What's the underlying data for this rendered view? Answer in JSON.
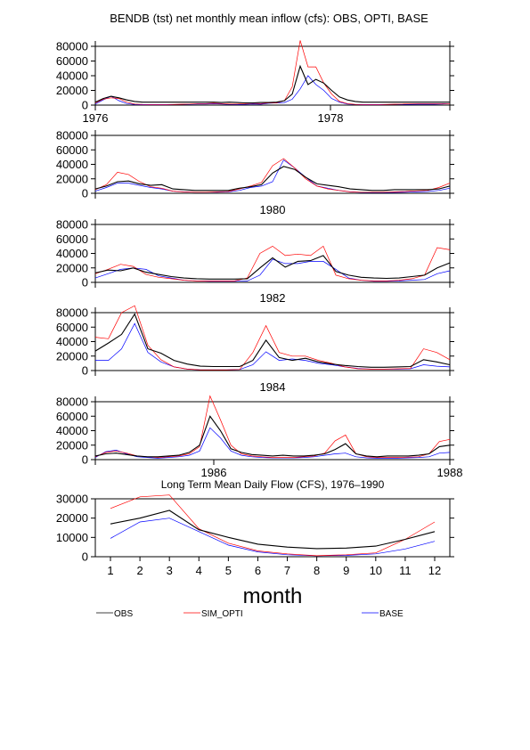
{
  "title": "BENDB (tst) net monthly mean inflow (cfs): OBS, OPTI, BASE",
  "colors": {
    "obs": "#000000",
    "opti": "#ff0000",
    "base": "#0000ff"
  },
  "legend": {
    "obs": "OBS",
    "opti": "SIM_OPTI",
    "base": "BASE"
  },
  "chart_data": [
    {
      "type": "line",
      "panel": 1,
      "x_start": "1976-01",
      "x_end": "1978-01",
      "ylim": [
        0,
        80000
      ],
      "yticks": [
        0,
        20000,
        40000,
        60000,
        80000
      ],
      "top_ticks": [],
      "bottom_ticks": [
        "1976",
        "1978"
      ],
      "series": [
        {
          "name": "OBS",
          "values": [
            4000,
            9000,
            12000,
            10000,
            7000,
            5000,
            4000,
            4000,
            4000,
            4000,
            4000,
            4000,
            4000,
            4000,
            4000,
            4000,
            3500,
            4000,
            3500,
            3000,
            3000,
            3500,
            3500,
            4000,
            6000,
            15000,
            53000,
            28000,
            35000,
            30000,
            20000,
            11000,
            7000,
            5000,
            4000,
            4000,
            4000,
            4000,
            4000,
            4000,
            4000,
            4000,
            4000,
            4000,
            4000,
            4000
          ]
        },
        {
          "name": "SIM_OPTI",
          "values": [
            3000,
            8000,
            10000,
            9000,
            4000,
            1500,
            1000,
            800,
            800,
            900,
            1000,
            1200,
            1500,
            2000,
            2000,
            2500,
            2000,
            1500,
            1500,
            2000,
            2500,
            2000,
            3000,
            3000,
            6000,
            25000,
            88000,
            52000,
            52000,
            30000,
            15000,
            5000,
            2000,
            1000,
            800,
            800,
            800,
            1000,
            1200,
            1500,
            2000,
            2000,
            2000,
            2000,
            2000,
            2000
          ]
        },
        {
          "name": "BASE",
          "values": [
            1500,
            7000,
            12000,
            6000,
            2000,
            800,
            500,
            400,
            400,
            500,
            800,
            1000,
            1200,
            1500,
            1500,
            1800,
            1500,
            1000,
            800,
            1000,
            1500,
            1200,
            2500,
            3000,
            3500,
            8000,
            22000,
            40000,
            28000,
            20000,
            9000,
            4000,
            1500,
            800,
            500,
            500,
            500,
            800,
            1000,
            1000,
            1000,
            1200,
            1200,
            1200,
            1500,
            2000
          ]
        }
      ]
    },
    {
      "type": "line",
      "panel": 2,
      "x_start": "1978-01",
      "x_end": "1980-01",
      "ylim": [
        0,
        80000
      ],
      "yticks": [
        0,
        20000,
        40000,
        60000,
        80000
      ],
      "top_ticks": [],
      "bottom_ticks": [],
      "series": [
        {
          "name": "OBS",
          "values": [
            6000,
            10000,
            16000,
            17000,
            13000,
            11000,
            12000,
            6000,
            5000,
            4000,
            4000,
            4000,
            4000,
            7000,
            9000,
            12000,
            28000,
            37000,
            33000,
            22000,
            13000,
            11000,
            9000,
            6000,
            5000,
            4000,
            4000,
            5000,
            5000,
            5000,
            5000,
            6000,
            10000
          ]
        },
        {
          "name": "SIM_OPTI",
          "values": [
            5000,
            12000,
            29000,
            26000,
            16000,
            9000,
            7000,
            3000,
            2000,
            1500,
            1500,
            2000,
            2500,
            6000,
            10000,
            15000,
            38000,
            48000,
            35000,
            20000,
            10000,
            6000,
            4000,
            2000,
            1500,
            1500,
            1500,
            2000,
            2500,
            3500,
            4000,
            8000,
            14000
          ]
        },
        {
          "name": "BASE",
          "values": [
            3000,
            8000,
            14000,
            14000,
            11000,
            8000,
            6000,
            3000,
            2000,
            1500,
            1500,
            1500,
            2000,
            4000,
            8000,
            10000,
            16000,
            46000,
            35000,
            22000,
            10000,
            7000,
            4000,
            2000,
            1200,
            1000,
            1000,
            1200,
            1500,
            2000,
            2500,
            4000,
            7000
          ]
        }
      ]
    },
    {
      "type": "line",
      "panel": 3,
      "x_start": "1980-01",
      "x_end": "1982-01",
      "ylim": [
        0,
        80000
      ],
      "yticks": [
        0,
        20000,
        40000,
        60000,
        80000
      ],
      "top_ticks": [
        "1980"
      ],
      "bottom_ticks": [],
      "series": [
        {
          "name": "OBS",
          "values": [
            13000,
            17000,
            16000,
            20000,
            14000,
            11000,
            8000,
            6000,
            5000,
            4500,
            4500,
            4500,
            5000,
            20000,
            34000,
            21000,
            29000,
            30000,
            37000,
            15000,
            10000,
            7000,
            6000,
            5500,
            6000,
            8000,
            10000,
            20000,
            27000
          ]
        },
        {
          "name": "SIM_OPTI",
          "values": [
            12000,
            18000,
            25000,
            22000,
            11000,
            7000,
            5000,
            3000,
            2000,
            2000,
            2000,
            2000,
            6000,
            40000,
            50000,
            37000,
            39000,
            37000,
            50000,
            10000,
            5000,
            3000,
            2000,
            2000,
            3000,
            5000,
            10000,
            48000,
            45000
          ]
        },
        {
          "name": "BASE",
          "values": [
            6000,
            12000,
            18000,
            20000,
            18000,
            9000,
            6000,
            3000,
            2000,
            1500,
            1500,
            1500,
            2000,
            10000,
            32000,
            26000,
            26000,
            29000,
            29000,
            18000,
            6000,
            3000,
            1500,
            1500,
            2000,
            3000,
            4000,
            12000,
            16000
          ]
        }
      ]
    },
    {
      "type": "line",
      "panel": 4,
      "x_start": "1982-01",
      "x_end": "1984-01",
      "ylim": [
        0,
        80000
      ],
      "yticks": [
        0,
        20000,
        40000,
        60000,
        80000
      ],
      "top_ticks": [
        "1982"
      ],
      "bottom_ticks": [],
      "series": [
        {
          "name": "OBS",
          "values": [
            27000,
            38000,
            50000,
            78000,
            30000,
            24000,
            14000,
            9000,
            6000,
            5500,
            5500,
            5500,
            14000,
            42000,
            18000,
            14000,
            17000,
            12000,
            9000,
            7000,
            5500,
            4500,
            4500,
            5000,
            5500,
            15000,
            12000,
            8000
          ]
        },
        {
          "name": "SIM_OPTI",
          "values": [
            46000,
            44000,
            80000,
            95000,
            35000,
            15000,
            5000,
            2000,
            1000,
            1000,
            1000,
            1500,
            25000,
            62000,
            25000,
            20000,
            20000,
            14000,
            10000,
            5000,
            2500,
            2000,
            2000,
            2500,
            3000,
            30000,
            25000,
            15000
          ]
        },
        {
          "name": "BASE",
          "values": [
            14000,
            14000,
            30000,
            65000,
            25000,
            12000,
            5000,
            2000,
            1000,
            1000,
            1000,
            1500,
            8000,
            26000,
            14000,
            16000,
            14000,
            10000,
            8000,
            5000,
            3000,
            2000,
            2000,
            2000,
            2500,
            8000,
            6000,
            5000
          ]
        }
      ]
    },
    {
      "type": "line",
      "panel": 5,
      "x_start": "1984-01",
      "x_end": "1986-01",
      "ylim": [
        0,
        80000
      ],
      "yticks": [
        0,
        20000,
        40000,
        60000,
        80000
      ],
      "top_ticks": [
        "1984"
      ],
      "bottom_ticks": [
        "1986",
        "1988"
      ],
      "series": [
        {
          "name": "OBS",
          "values": [
            5000,
            8000,
            9000,
            7000,
            5000,
            4000,
            4000,
            5000,
            6000,
            10000,
            20000,
            60000,
            40000,
            15000,
            10000,
            7000,
            6000,
            5000,
            6000,
            5000,
            5000,
            6000,
            8000,
            14000,
            22000,
            8000,
            5000,
            4000,
            5000,
            5000,
            5000,
            6000,
            8000,
            18000,
            20000
          ]
        },
        {
          "name": "SIM_OPTI",
          "values": [
            4000,
            10000,
            12000,
            9000,
            5000,
            4000,
            3000,
            4000,
            5000,
            8000,
            18000,
            88000,
            55000,
            20000,
            8000,
            5000,
            4000,
            3000,
            3000,
            3000,
            4000,
            5000,
            9000,
            26000,
            34000,
            8000,
            4000,
            3000,
            3000,
            3000,
            3500,
            4000,
            8000,
            25000,
            28000
          ]
        },
        {
          "name": "BASE",
          "values": [
            3000,
            11000,
            13000,
            8000,
            4000,
            3000,
            2000,
            3000,
            4000,
            6000,
            12000,
            44000,
            30000,
            12000,
            6000,
            4000,
            3000,
            2500,
            2500,
            2500,
            3000,
            4000,
            6000,
            8000,
            9000,
            4000,
            2500,
            2000,
            2000,
            2000,
            2500,
            3000,
            4000,
            9000,
            10000
          ]
        }
      ]
    },
    {
      "type": "line",
      "panel": 6,
      "title": "Long Term Mean Daily Flow (CFS), 1976–1990",
      "xlabel": "month",
      "categories": [
        "1",
        "2",
        "3",
        "4",
        "5",
        "6",
        "7",
        "8",
        "9",
        "10",
        "11",
        "12"
      ],
      "ylim": [
        0,
        30000
      ],
      "yticks": [
        0,
        10000,
        20000,
        30000
      ],
      "series": [
        {
          "name": "OBS",
          "values": [
            17000,
            20000,
            24000,
            14000,
            10000,
            6500,
            5000,
            4200,
            4500,
            5500,
            9000,
            13000
          ]
        },
        {
          "name": "SIM_OPTI",
          "values": [
            25000,
            31000,
            32000,
            14500,
            7000,
            3000,
            1500,
            500,
            1000,
            2000,
            9000,
            18000
          ]
        },
        {
          "name": "BASE",
          "values": [
            9500,
            18000,
            20000,
            13000,
            6000,
            2500,
            1000,
            500,
            700,
            1500,
            4000,
            8000
          ]
        }
      ]
    }
  ]
}
